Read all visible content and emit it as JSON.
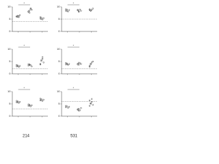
{
  "chart_data": [
    {
      "type": "strip",
      "ylim": [
        0,
        10
      ],
      "yticks": [
        0,
        5,
        10
      ],
      "ref": 4,
      "annotation": "*",
      "color": "#222",
      "values": [
        [
          6.1,
          6.4,
          5.8,
          6.6,
          6.0,
          5.9,
          6.3
        ],
        [
          8.2,
          7.6,
          9.1,
          8.8,
          7.9,
          8.5,
          9.4
        ],
        [
          5.2,
          5.6,
          4.9,
          5.4,
          5.8,
          5.0
        ]
      ]
    },
    {
      "type": "strip",
      "ylim": [
        0,
        10
      ],
      "yticks": [
        0,
        5,
        10
      ],
      "ref": 5,
      "annotation": "*",
      "color": "#222",
      "values": [
        [
          8.4,
          8.9,
          8.1,
          8.7,
          9.0,
          8.3
        ],
        [
          8.6,
          8.2,
          8.9,
          8.4,
          8.8,
          8.0
        ],
        [
          9.0,
          8.5,
          8.8,
          9.3,
          8.7,
          8.4
        ]
      ]
    },
    {
      "type": "strip",
      "ylim": [
        0,
        10
      ],
      "yticks": [
        0,
        5,
        10
      ],
      "ref": 2,
      "annotation": "*",
      "color": "#222",
      "values": [
        [
          3.0,
          3.4,
          2.8,
          3.2,
          3.6,
          3.1
        ],
        [
          3.3,
          3.8,
          3.5,
          3.0,
          3.9,
          3.6
        ],
        [
          4.0,
          5.2,
          6.1,
          4.6,
          3.8,
          5.6,
          6.8
        ]
      ]
    },
    {
      "type": "strip",
      "ylim": [
        0,
        10
      ],
      "yticks": [
        0,
        5,
        10
      ],
      "ref": 2,
      "annotation": "*",
      "color": "#222",
      "values": [
        [
          3.8,
          4.2,
          3.6,
          4.0,
          4.4,
          3.9
        ],
        [
          4.1,
          3.7,
          4.3,
          4.0,
          3.8,
          4.5
        ],
        [
          3.2,
          3.8,
          4.6,
          5.0,
          2.9,
          4.1
        ]
      ]
    },
    {
      "type": "strip",
      "ylim": [
        0,
        10
      ],
      "yticks": [
        0,
        5,
        10
      ],
      "ref": 3,
      "annotation": "*",
      "color": "#222",
      "values": [
        [
          5.6,
          6.0,
          5.4,
          5.8,
          6.2,
          5.7
        ],
        [
          4.2,
          4.6,
          4.0,
          4.4,
          4.8,
          4.3
        ],
        [
          6.4,
          6.9,
          6.2,
          6.7,
          7.1,
          6.5
        ]
      ]
    },
    {
      "type": "strip",
      "ylim": [
        0,
        10
      ],
      "yticks": [
        0,
        5,
        10
      ],
      "ref": 6,
      "annotation": "*",
      "color": "#222",
      "values": [
        [
          3.6,
          4.0,
          3.4,
          3.8,
          4.2
        ],
        [
          2.6,
          3.0,
          2.4,
          3.3,
          2.8,
          2.2
        ],
        [
          4.2,
          5.0,
          5.8,
          4.6,
          6.4,
          5.3,
          7.0
        ]
      ]
    }
  ],
  "column_labels": [
    "214",
    "531"
  ]
}
